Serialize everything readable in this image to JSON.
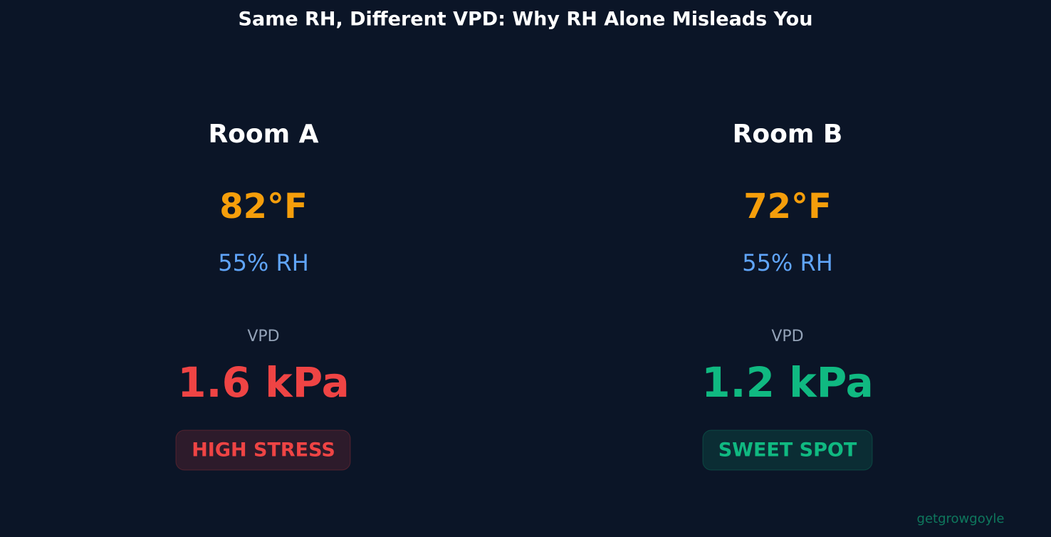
{
  "title": "Same RH, Different VPD: Why RH Alone Misleads You",
  "rooms": [
    {
      "name": "Room A",
      "temperature": "82°F",
      "humidity": "55% RH",
      "vpd_label": "VPD",
      "vpd": "1.6 kPa",
      "status": "HIGH STRESS"
    },
    {
      "name": "Room B",
      "temperature": "72°F",
      "humidity": "55% RH",
      "vpd_label": "VPD",
      "vpd": "1.2 kPa",
      "status": "SWEET SPOT"
    }
  ],
  "watermark": "getgrowgoyle"
}
